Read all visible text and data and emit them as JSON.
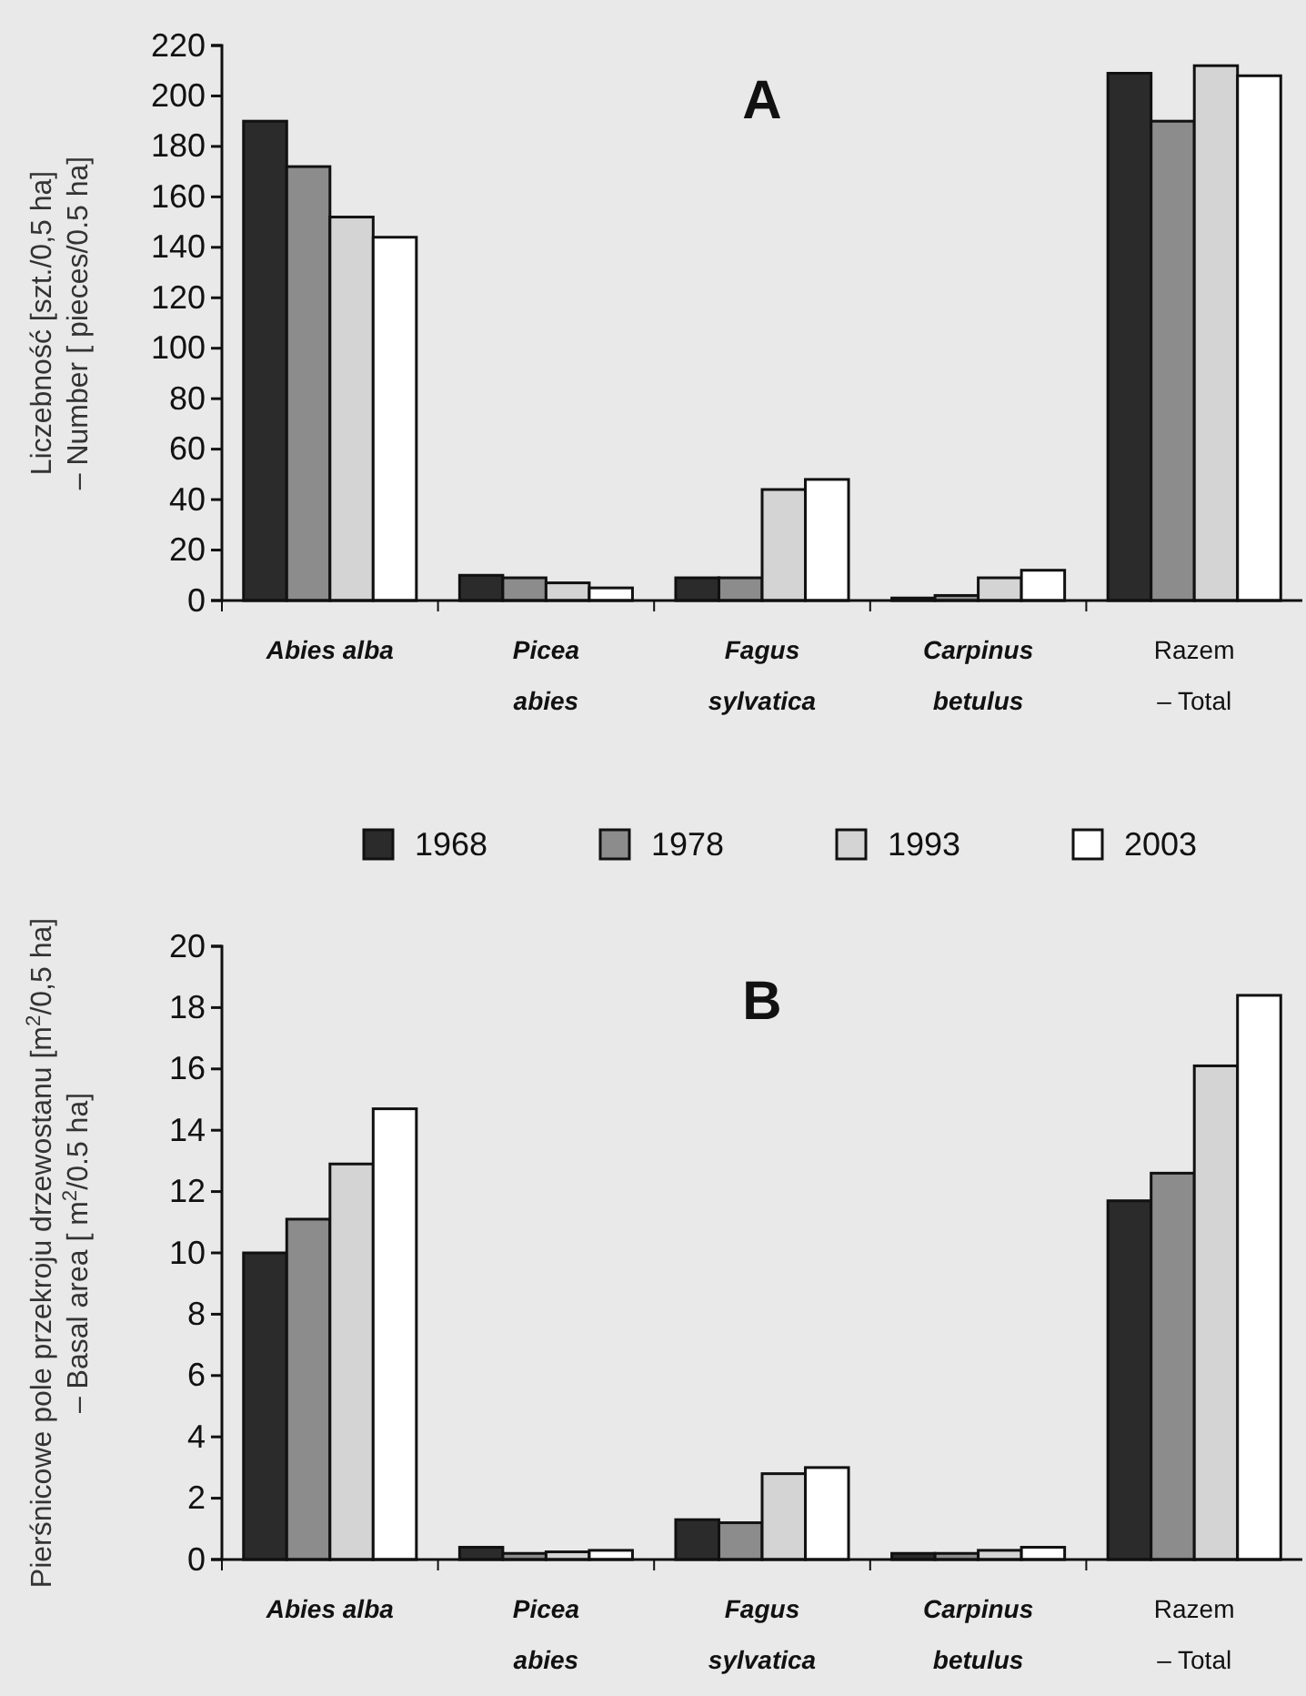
{
  "chart_data": [
    {
      "type": "bar",
      "title": "A",
      "ylabel": "Liczebność [szt./0,5 ha]\n– Number [ pieces/0.5 ha]",
      "categories": [
        "Abies alba",
        "Picea\nabies",
        "Fagus\nsylvatica",
        "Carpinus\nbetulus",
        "Razem\n– Total"
      ],
      "series": [
        {
          "name": "1968",
          "color": "#2b2b2b",
          "values": [
            190,
            10,
            9,
            1,
            209
          ]
        },
        {
          "name": "1978",
          "color": "#8c8c8c",
          "values": [
            172,
            9,
            9,
            2,
            190
          ]
        },
        {
          "name": "1993",
          "color": "#d4d4d4",
          "values": [
            152,
            7,
            44,
            9,
            212
          ]
        },
        {
          "name": "2003",
          "color": "#ffffff",
          "values": [
            144,
            5,
            48,
            12,
            208
          ]
        }
      ],
      "ylim": [
        0,
        220
      ],
      "yticks": [
        0,
        20,
        40,
        60,
        80,
        100,
        120,
        140,
        160,
        180,
        200,
        220
      ],
      "legend": "bottom",
      "grid": false
    },
    {
      "type": "bar",
      "title": "B",
      "ylabel": "Pierśnicowe pole przekroju drzewostanu [m$^{2}$/0,5 ha]\n– Basal area [ m$^{2}$/0.5 ha]",
      "categories": [
        "Abies alba",
        "Picea\nabies",
        "Fagus\nsylvatica",
        "Carpinus\nbetulus",
        "Razem\n– Total"
      ],
      "series": [
        {
          "color": "#2b2b2b",
          "values": [
            10.0,
            0.4,
            1.3,
            0.2,
            11.7
          ]
        },
        {
          "color": "#8c8c8c",
          "values": [
            11.1,
            0.2,
            1.2,
            0.2,
            12.6
          ]
        },
        {
          "color": "#d4d4d4",
          "values": [
            12.9,
            0.25,
            2.8,
            0.3,
            16.1
          ]
        },
        {
          "color": "#ffffff",
          "values": [
            14.7,
            0.3,
            3.0,
            0.4,
            18.4
          ]
        }
      ],
      "ylim": [
        0,
        20
      ],
      "yticks": [
        0,
        2,
        4,
        6,
        8,
        10,
        12,
        14,
        16,
        18,
        20
      ],
      "grid": false
    }
  ]
}
